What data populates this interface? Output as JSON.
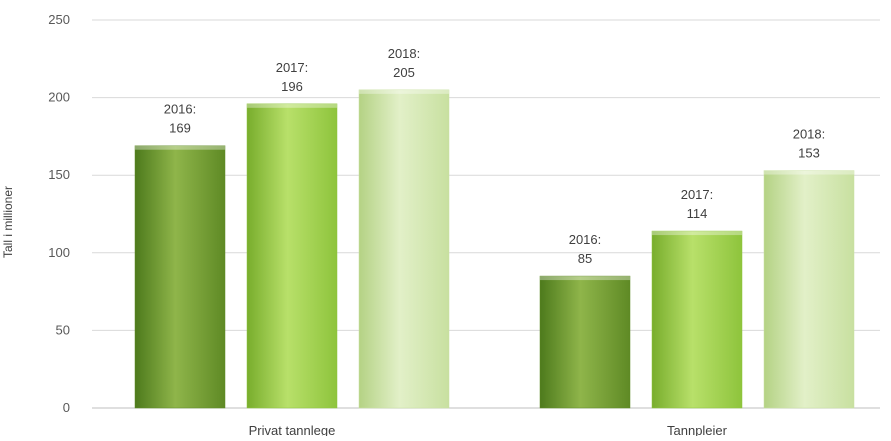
{
  "chart_data": {
    "type": "bar",
    "categories": [
      "Privat tannlege",
      "Tannpleier"
    ],
    "series": [
      {
        "year": "2016",
        "values": [
          169,
          85
        ],
        "color": "#6f9a2f"
      },
      {
        "year": "2017",
        "values": [
          196,
          114
        ],
        "color": "#9fcf4c"
      },
      {
        "year": "2018",
        "values": [
          205,
          153
        ],
        "color": "#cfe4a8"
      }
    ],
    "data_labels": [
      [
        "2016:",
        "2017:",
        "2018:"
      ],
      [
        "2016:",
        "2017:",
        "2018:"
      ]
    ],
    "ylabel": "Tall i millioner",
    "ylim": [
      0,
      250
    ],
    "yticks": [
      0,
      50,
      100,
      150,
      200,
      250
    ],
    "grid": true,
    "legend": "none"
  }
}
